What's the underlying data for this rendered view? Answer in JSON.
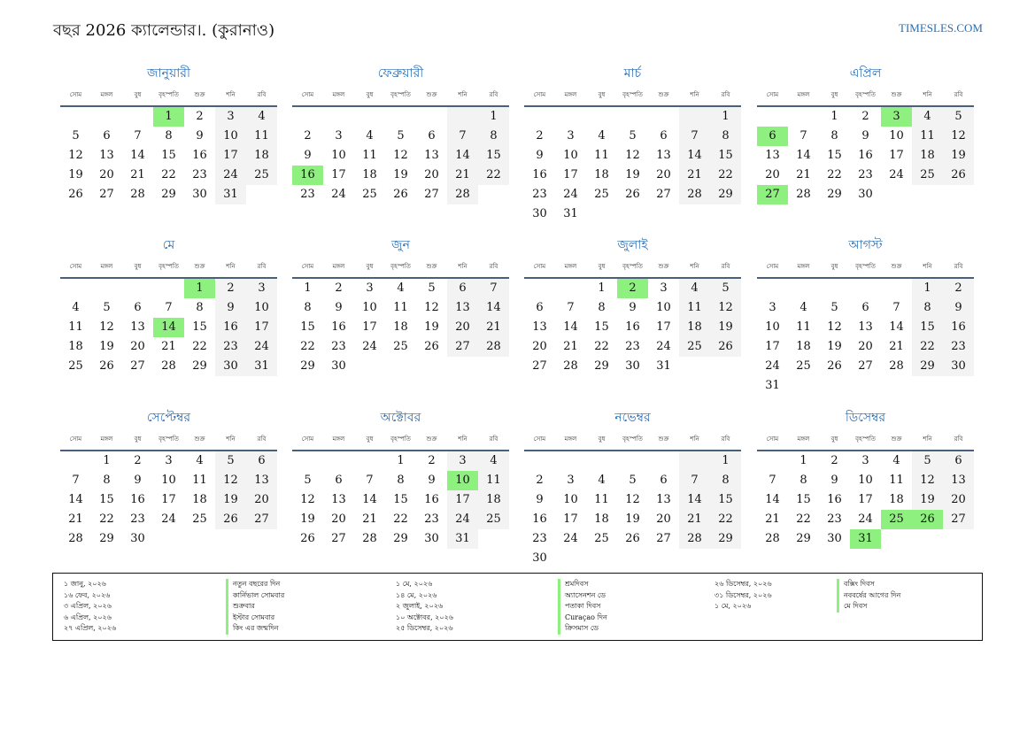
{
  "header": {
    "title": "বছর 2026 ক্যালেন্ডার।. (কুরানাও)",
    "site": "TIMESLES.COM"
  },
  "colors": {
    "accent": "#2a6db0",
    "holiday": "#8ef07e",
    "weekend": "#f3f3f3",
    "rule": "#4a5f7a"
  },
  "weekdays": [
    "সোম",
    "মঙ্গল",
    "বুধ",
    "বৃহস্পতি",
    "শুক্র",
    "শনি",
    "রবি"
  ],
  "months": [
    {
      "name": "জানুয়ারী",
      "offset": 3,
      "days": 31,
      "holidays": [
        1
      ]
    },
    {
      "name": "ফেব্রুয়ারী",
      "offset": 6,
      "days": 28,
      "holidays": [
        16
      ]
    },
    {
      "name": "মার্চ",
      "offset": 6,
      "days": 31,
      "holidays": []
    },
    {
      "name": "এপ্রিল",
      "offset": 2,
      "days": 30,
      "holidays": [
        3,
        6,
        27
      ]
    },
    {
      "name": "মে",
      "offset": 4,
      "days": 31,
      "holidays": [
        1,
        14
      ]
    },
    {
      "name": "জুন",
      "offset": 0,
      "days": 30,
      "holidays": []
    },
    {
      "name": "জুলাই",
      "offset": 2,
      "days": 31,
      "holidays": [
        2
      ]
    },
    {
      "name": "আগস্ট",
      "offset": 5,
      "days": 31,
      "holidays": []
    },
    {
      "name": "সেপ্টেম্বর",
      "offset": 1,
      "days": 30,
      "holidays": []
    },
    {
      "name": "অক্টোবর",
      "offset": 3,
      "days": 31,
      "holidays": [
        10
      ]
    },
    {
      "name": "নভেম্বর",
      "offset": 6,
      "days": 30,
      "holidays": []
    },
    {
      "name": "ডিসেম্বর",
      "offset": 1,
      "days": 31,
      "holidays": [
        25,
        26,
        31
      ]
    }
  ],
  "legend": [
    {
      "date": "১ জানু, ২০২৬",
      "name": "নতুন বছরের দিন"
    },
    {
      "date": "১ মে, ২০২৬",
      "name": "শ্রমদিবস"
    },
    {
      "date": "২৬ ডিসেম্বর, ২০২৬",
      "name": "বক্সিং দিবস"
    },
    {
      "date": "১৬ ফেব, ২০২৬",
      "name": "কার্নিভাল সোমবার"
    },
    {
      "date": "১৪ মে, ২০২৬",
      "name": "অ্যাসেনশন ডে"
    },
    {
      "date": "৩১ ডিসেম্বর, ২০২৬",
      "name": "নববর্ষের আগের দিন"
    },
    {
      "date": "৩ এপ্রিল, ২০২৬",
      "name": "শুক্রবার"
    },
    {
      "date": "২ জুলাই, ২০২৬",
      "name": "পতাকা দিবস"
    },
    {
      "date": "১ মে, ২০২৬",
      "name": "মে দিবস"
    },
    {
      "date": "৬ এপ্রিল, ২০২৬",
      "name": "ইস্টার সোমবার"
    },
    {
      "date": "১০ অক্টোবর, ২০২৬",
      "name": "Curaçao দিন"
    },
    {
      "date": "",
      "name": ""
    },
    {
      "date": "২৭ এপ্রিল, ২০২৬",
      "name": "কিং এর জন্মদিন"
    },
    {
      "date": "২৫ ডিসেম্বর, ২০২৬",
      "name": "ক্রিসমাস ডে"
    },
    {
      "date": "",
      "name": ""
    }
  ]
}
